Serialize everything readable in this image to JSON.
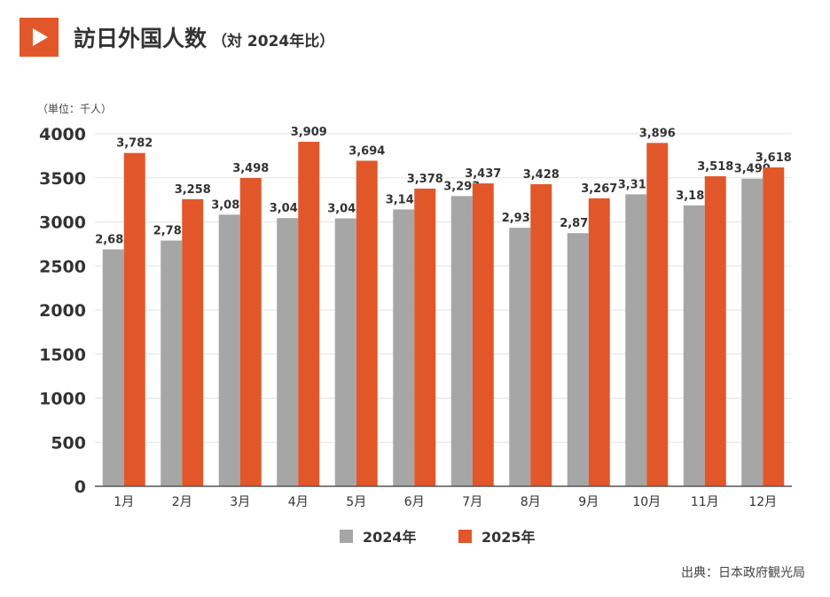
{
  "header": {
    "icon": "play-icon",
    "title": "訪日外国人数",
    "subtitle": "（対 2024年比）"
  },
  "colors": {
    "accent": "#e2572a",
    "series_2024": "#a6a6a6",
    "series_2025": "#e2572a"
  },
  "chart_data": {
    "type": "bar",
    "unit_label": "（単位：千人）",
    "categories": [
      "1月",
      "2月",
      "3月",
      "4月",
      "5月",
      "6月",
      "7月",
      "8月",
      "9月",
      "10月",
      "11月",
      "12月"
    ],
    "series": [
      {
        "name": "2024年",
        "color": "#a6a6a6",
        "values": [
          2688,
          2788,
          3082,
          3043,
          3040,
          3141,
          3293,
          2933,
          2872,
          3312,
          3187,
          3490
        ]
      },
      {
        "name": "2025年",
        "color": "#e2572a",
        "values": [
          3782,
          3258,
          3498,
          3909,
          3694,
          3378,
          3437,
          3428,
          3267,
          3896,
          3518,
          3618
        ]
      }
    ],
    "ylim": [
      0,
      4000
    ],
    "yticks": [
      0,
      500,
      1000,
      1500,
      2000,
      2500,
      3000,
      3500,
      4000
    ],
    "grid": true,
    "legend_position": "bottom"
  },
  "source": "出典：日本政府観光局"
}
